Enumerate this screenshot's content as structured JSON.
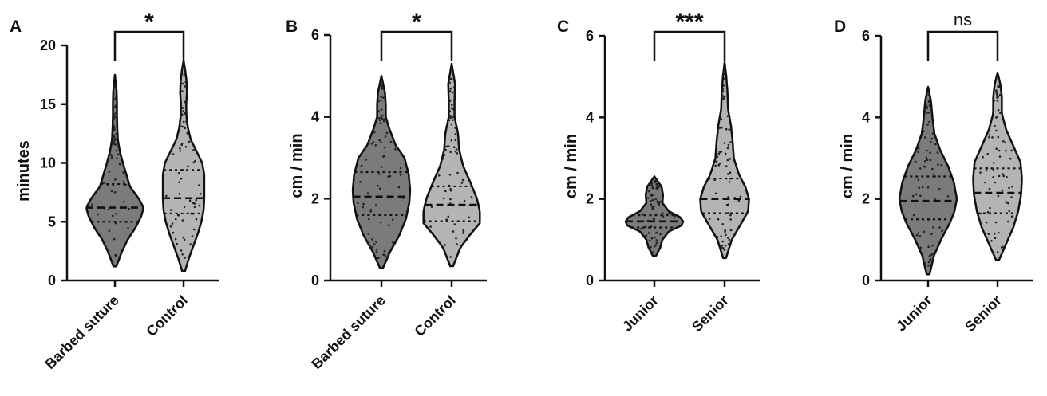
{
  "colors": {
    "group1_fill": "#7b7b7b",
    "group2_fill": "#b4b4b4",
    "outline": "#111111",
    "points": "#222222"
  },
  "chart_data": [
    {
      "type": "violin",
      "panel_label": "A",
      "ylabel": "minutes",
      "ylim": [
        0,
        20
      ],
      "yticks": [
        0,
        5,
        10,
        15,
        20
      ],
      "categories": [
        "Barbed suture",
        "Control"
      ],
      "significance": "*",
      "series": [
        {
          "range": [
            1.2,
            17.5
          ],
          "quartiles": [
            5.0,
            6.2,
            8.2
          ],
          "density": [
            [
              1.2,
              0.05
            ],
            [
              2.5,
              0.25
            ],
            [
              3.5,
              0.45
            ],
            [
              4.5,
              0.72
            ],
            [
              5.5,
              0.92
            ],
            [
              6.2,
              1.0
            ],
            [
              7.0,
              0.82
            ],
            [
              8.0,
              0.52
            ],
            [
              9.0,
              0.4
            ],
            [
              10.0,
              0.28
            ],
            [
              11.0,
              0.17
            ],
            [
              12.0,
              0.1
            ],
            [
              13.0,
              0.08
            ],
            [
              14.0,
              0.07
            ],
            [
              15.0,
              0.07
            ],
            [
              16.0,
              0.06
            ],
            [
              17.5,
              0.0
            ]
          ]
        },
        {
          "range": [
            0.8,
            18.7
          ],
          "quartiles": [
            5.7,
            7.0,
            9.4
          ],
          "density": [
            [
              0.8,
              0.05
            ],
            [
              2.0,
              0.2
            ],
            [
              3.0,
              0.35
            ],
            [
              4.0,
              0.5
            ],
            [
              5.0,
              0.62
            ],
            [
              6.0,
              0.7
            ],
            [
              7.0,
              0.72
            ],
            [
              8.0,
              0.72
            ],
            [
              9.0,
              0.72
            ],
            [
              10.0,
              0.65
            ],
            [
              11.0,
              0.45
            ],
            [
              12.0,
              0.25
            ],
            [
              13.0,
              0.15
            ],
            [
              14.0,
              0.1
            ],
            [
              15.0,
              0.09
            ],
            [
              16.0,
              0.12
            ],
            [
              17.0,
              0.1
            ],
            [
              18.0,
              0.05
            ],
            [
              18.7,
              0.0
            ]
          ]
        }
      ]
    },
    {
      "type": "violin",
      "panel_label": "B",
      "ylabel": "cm / min",
      "ylim": [
        0,
        6
      ],
      "yticks": [
        0,
        2,
        4,
        6
      ],
      "categories": [
        "Barbed suture",
        "Control"
      ],
      "significance": "*",
      "series": [
        {
          "range": [
            0.3,
            5.0
          ],
          "quartiles": [
            1.6,
            2.05,
            2.65
          ],
          "density": [
            [
              0.3,
              0.05
            ],
            [
              0.7,
              0.3
            ],
            [
              1.1,
              0.62
            ],
            [
              1.5,
              0.85
            ],
            [
              1.9,
              0.97
            ],
            [
              2.2,
              1.0
            ],
            [
              2.6,
              0.95
            ],
            [
              3.0,
              0.8
            ],
            [
              3.3,
              0.5
            ],
            [
              3.7,
              0.28
            ],
            [
              4.0,
              0.15
            ],
            [
              4.3,
              0.15
            ],
            [
              4.6,
              0.12
            ],
            [
              5.0,
              0.0
            ]
          ]
        },
        {
          "range": [
            0.35,
            5.3
          ],
          "quartiles": [
            1.45,
            1.85,
            2.3
          ],
          "density": [
            [
              0.35,
              0.05
            ],
            [
              0.8,
              0.3
            ],
            [
              1.1,
              0.62
            ],
            [
              1.4,
              0.98
            ],
            [
              1.7,
              0.98
            ],
            [
              2.0,
              0.88
            ],
            [
              2.4,
              0.65
            ],
            [
              2.8,
              0.4
            ],
            [
              3.2,
              0.26
            ],
            [
              3.6,
              0.22
            ],
            [
              4.0,
              0.1
            ],
            [
              4.4,
              0.1
            ],
            [
              4.8,
              0.12
            ],
            [
              5.3,
              0.0
            ]
          ]
        }
      ]
    },
    {
      "type": "violin",
      "panel_label": "C",
      "ylabel": "cm / min",
      "ylim": [
        0,
        6
      ],
      "yticks": [
        0,
        2,
        4,
        6
      ],
      "categories": [
        "Junior",
        "Senior"
      ],
      "significance": "***",
      "series": [
        {
          "range": [
            0.6,
            2.55
          ],
          "quartiles": [
            1.3,
            1.45,
            1.6
          ],
          "density": [
            [
              0.6,
              0.05
            ],
            [
              0.8,
              0.2
            ],
            [
              1.0,
              0.28
            ],
            [
              1.2,
              0.5
            ],
            [
              1.35,
              0.95
            ],
            [
              1.45,
              1.0
            ],
            [
              1.55,
              0.9
            ],
            [
              1.7,
              0.5
            ],
            [
              1.9,
              0.28
            ],
            [
              2.1,
              0.3
            ],
            [
              2.3,
              0.25
            ],
            [
              2.55,
              0.0
            ]
          ]
        },
        {
          "range": [
            0.55,
            5.35
          ],
          "quartiles": [
            1.65,
            2.0,
            2.5
          ],
          "density": [
            [
              0.55,
              0.05
            ],
            [
              1.0,
              0.25
            ],
            [
              1.4,
              0.58
            ],
            [
              1.7,
              0.82
            ],
            [
              2.0,
              0.85
            ],
            [
              2.3,
              0.72
            ],
            [
              2.6,
              0.5
            ],
            [
              3.0,
              0.32
            ],
            [
              3.4,
              0.28
            ],
            [
              3.8,
              0.22
            ],
            [
              4.2,
              0.12
            ],
            [
              4.6,
              0.1
            ],
            [
              5.0,
              0.06
            ],
            [
              5.35,
              0.0
            ]
          ]
        }
      ]
    },
    {
      "type": "violin",
      "panel_label": "D",
      "ylabel": "cm / min",
      "ylim": [
        0,
        6
      ],
      "yticks": [
        0,
        2,
        4,
        6
      ],
      "categories": [
        "Junior",
        "Senior"
      ],
      "significance": "ns",
      "series": [
        {
          "range": [
            0.15,
            4.75
          ],
          "quartiles": [
            1.5,
            1.95,
            2.55
          ],
          "density": [
            [
              0.15,
              0.05
            ],
            [
              0.6,
              0.2
            ],
            [
              1.0,
              0.45
            ],
            [
              1.4,
              0.75
            ],
            [
              1.7,
              0.92
            ],
            [
              2.0,
              1.0
            ],
            [
              2.4,
              0.9
            ],
            [
              2.8,
              0.7
            ],
            [
              3.2,
              0.42
            ],
            [
              3.6,
              0.22
            ],
            [
              4.0,
              0.15
            ],
            [
              4.4,
              0.1
            ],
            [
              4.75,
              0.0
            ]
          ]
        },
        {
          "range": [
            0.5,
            5.1
          ],
          "quartiles": [
            1.65,
            2.15,
            2.75
          ],
          "density": [
            [
              0.5,
              0.05
            ],
            [
              0.9,
              0.3
            ],
            [
              1.3,
              0.55
            ],
            [
              1.7,
              0.72
            ],
            [
              2.1,
              0.82
            ],
            [
              2.5,
              0.85
            ],
            [
              2.9,
              0.8
            ],
            [
              3.3,
              0.55
            ],
            [
              3.7,
              0.3
            ],
            [
              4.1,
              0.15
            ],
            [
              4.5,
              0.15
            ],
            [
              4.8,
              0.1
            ],
            [
              5.1,
              0.0
            ]
          ]
        }
      ]
    }
  ]
}
